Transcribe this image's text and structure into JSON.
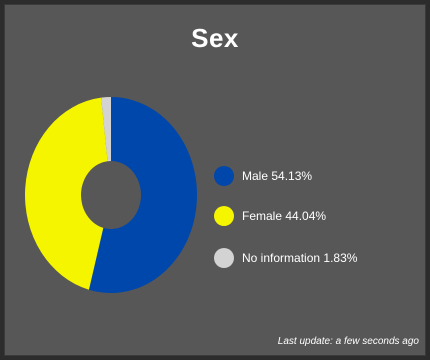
{
  "title": "Sex",
  "footer": "Last update: a few seconds ago",
  "chart_data": {
    "type": "pie",
    "title": "Sex",
    "categories": [
      "Male",
      "Female",
      "No information"
    ],
    "values": [
      54.13,
      44.04,
      1.83
    ],
    "value_labels": [
      "54.13%",
      "44.04%",
      "1.83%"
    ],
    "colors": [
      "#0047ab",
      "#f5f500",
      "#d3d3d3"
    ],
    "donut": true,
    "legend_position": "right"
  }
}
